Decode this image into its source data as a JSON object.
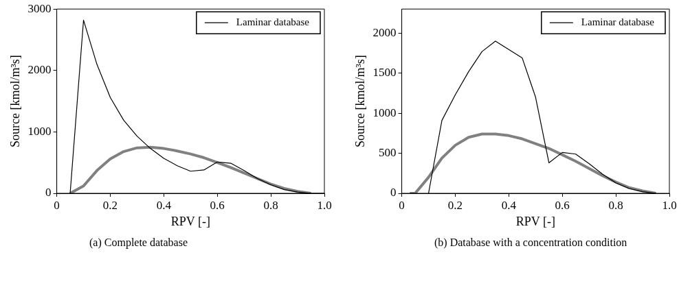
{
  "chart_data": [
    {
      "type": "line",
      "xlabel": "RPV [-]",
      "ylabel": "Source [kmol/m³s]",
      "xlim": [
        0,
        1
      ],
      "xticks": [
        0,
        0.2,
        0.4,
        0.6,
        0.8,
        {
          "value": 1,
          "label": "1.0"
        }
      ],
      "ylim": [
        0,
        3000
      ],
      "yticks": [
        0,
        1000,
        2000,
        3000
      ],
      "grid": false,
      "legend": "top right",
      "marker": "none",
      "annotations": [
        "(a) Complete database"
      ],
      "series": [
        {
          "name": "Laminar database",
          "color": "#000000",
          "x": [
            0.05,
            0.1,
            0.15,
            0.2,
            0.25,
            0.3,
            0.35,
            0.4,
            0.45,
            0.5,
            0.55,
            0.6,
            0.65,
            0.7,
            0.75,
            0.8,
            0.85,
            0.9,
            0.95,
            1.0
          ],
          "values": [
            0,
            2820,
            2100,
            1560,
            1190,
            930,
            730,
            570,
            450,
            360,
            380,
            510,
            490,
            370,
            240,
            140,
            60,
            20,
            0,
            0
          ]
        },
        {
          "color": "#808080",
          "x": [
            0.05,
            0.1,
            0.15,
            0.2,
            0.25,
            0.3,
            0.35,
            0.4,
            0.45,
            0.5,
            0.55,
            0.6,
            0.65,
            0.7,
            0.75,
            0.8,
            0.85,
            0.9,
            0.95
          ],
          "values": [
            0,
            120,
            370,
            560,
            680,
            740,
            750,
            730,
            690,
            640,
            580,
            500,
            420,
            330,
            240,
            150,
            80,
            30,
            0
          ]
        }
      ]
    },
    {
      "type": "line",
      "xlabel": "RPV [-]",
      "ylabel": "Source [kmol/m³s]",
      "xlim": [
        0,
        1
      ],
      "xticks": [
        0,
        0.2,
        0.4,
        0.6,
        0.8,
        {
          "value": 1,
          "label": "1.0"
        }
      ],
      "ylim": [
        0,
        2300
      ],
      "yticks": [
        0,
        500,
        1000,
        1500,
        2000
      ],
      "grid": false,
      "legend": "top right",
      "marker": "none",
      "annotations": [
        "(b) Database with a concentration condition"
      ],
      "series": [
        {
          "name": "Laminar database",
          "color": "#000000",
          "x": [
            0.1,
            0.15,
            0.2,
            0.25,
            0.3,
            0.35,
            0.4,
            0.45,
            0.5,
            0.55,
            0.6,
            0.65,
            0.7,
            0.75,
            0.8,
            0.85,
            0.9,
            0.95
          ],
          "values": [
            0,
            910,
            1230,
            1520,
            1770,
            1900,
            null,
            1690,
            1200,
            380,
            510,
            490,
            370,
            240,
            130,
            60,
            20,
            0
          ]
        },
        {
          "color": "#808080",
          "x": [
            0.03,
            0.05,
            0.1,
            0.15,
            0.2,
            0.25,
            0.3,
            0.35,
            0.4,
            0.45,
            0.5,
            0.55,
            0.6,
            0.65,
            0.7,
            0.75,
            0.8,
            0.85,
            0.9,
            0.95
          ],
          "values": [
            0,
            0,
            200,
            440,
            600,
            700,
            740,
            740,
            720,
            680,
            620,
            560,
            480,
            400,
            310,
            220,
            140,
            70,
            30,
            0
          ]
        }
      ]
    }
  ]
}
